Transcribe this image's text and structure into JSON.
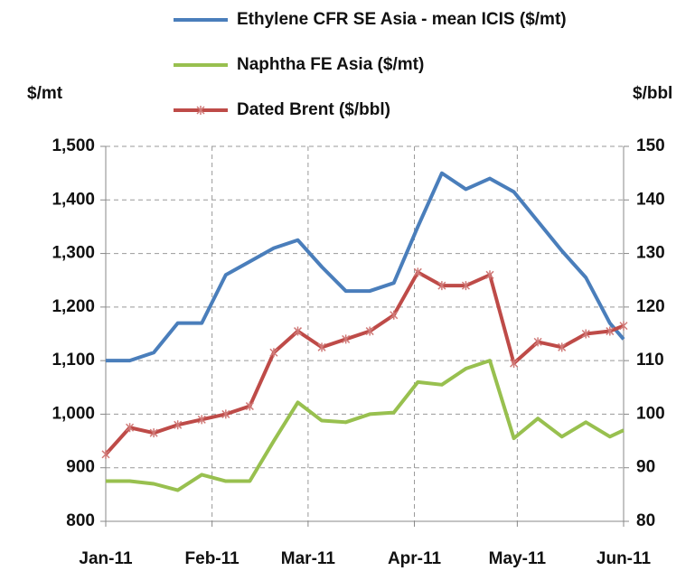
{
  "chart_data": {
    "type": "line",
    "y_label": "$/mt",
    "y2_label": "$/bbl",
    "x": [
      0,
      7,
      14,
      21,
      28,
      35,
      42,
      49,
      56,
      63,
      70,
      77,
      84,
      91,
      98,
      105,
      112,
      119,
      126,
      133,
      140,
      147,
      151
    ],
    "xlim": [
      0,
      151
    ],
    "xticks": [
      {
        "value": 0,
        "label": "Jan-11"
      },
      {
        "value": 31,
        "label": "Feb-11"
      },
      {
        "value": 59,
        "label": "Mar-11"
      },
      {
        "value": 90,
        "label": "Apr-11"
      },
      {
        "value": 120,
        "label": "May-11"
      },
      {
        "value": 151,
        "label": "Jun-11"
      }
    ],
    "ylim": [
      800,
      1500
    ],
    "yticks": [
      {
        "value": 800,
        "label": "800"
      },
      {
        "value": 900,
        "label": "900"
      },
      {
        "value": 1000,
        "label": "1,000"
      },
      {
        "value": 1100,
        "label": "1,100"
      },
      {
        "value": 1200,
        "label": "1,200"
      },
      {
        "value": 1300,
        "label": "1,300"
      },
      {
        "value": 1400,
        "label": "1,400"
      },
      {
        "value": 1500,
        "label": "1,500"
      }
    ],
    "y2lim": [
      80,
      150
    ],
    "y2ticks": [
      80,
      90,
      100,
      110,
      120,
      130,
      140,
      150
    ],
    "grid": true,
    "series": [
      {
        "name": "Ethylene CFR SE Asia - mean ICIS ($/mt)",
        "color": "#4a7ebb",
        "values": [
          1100,
          1100,
          1115,
          1170,
          1170,
          1260,
          1285,
          1310,
          1325,
          1275,
          1230,
          1230,
          1245,
          1350,
          1450,
          1420,
          1440,
          1415,
          1360,
          1305,
          1255,
          1170,
          1140
        ]
      },
      {
        "name": "Naphtha FE Asia ($/mt)",
        "color": "#98c04f",
        "values": [
          875,
          875,
          870,
          858,
          887,
          875,
          875,
          950,
          1022,
          988,
          985,
          1000,
          1003,
          1060,
          1055,
          1085,
          1100,
          955,
          992,
          958,
          985,
          958,
          970
        ]
      },
      {
        "name": "Dated Brent ($/bbl)",
        "color": "#be4b48",
        "axis": "y2",
        "marker": "asterisk",
        "values": [
          92.5,
          97.5,
          96.5,
          98,
          99,
          100,
          101.5,
          111.5,
          115.5,
          112.5,
          114,
          115.5,
          118.5,
          126.5,
          124,
          124,
          126,
          109.5,
          113.5,
          112.5,
          115,
          115.5,
          116.5
        ]
      }
    ]
  }
}
